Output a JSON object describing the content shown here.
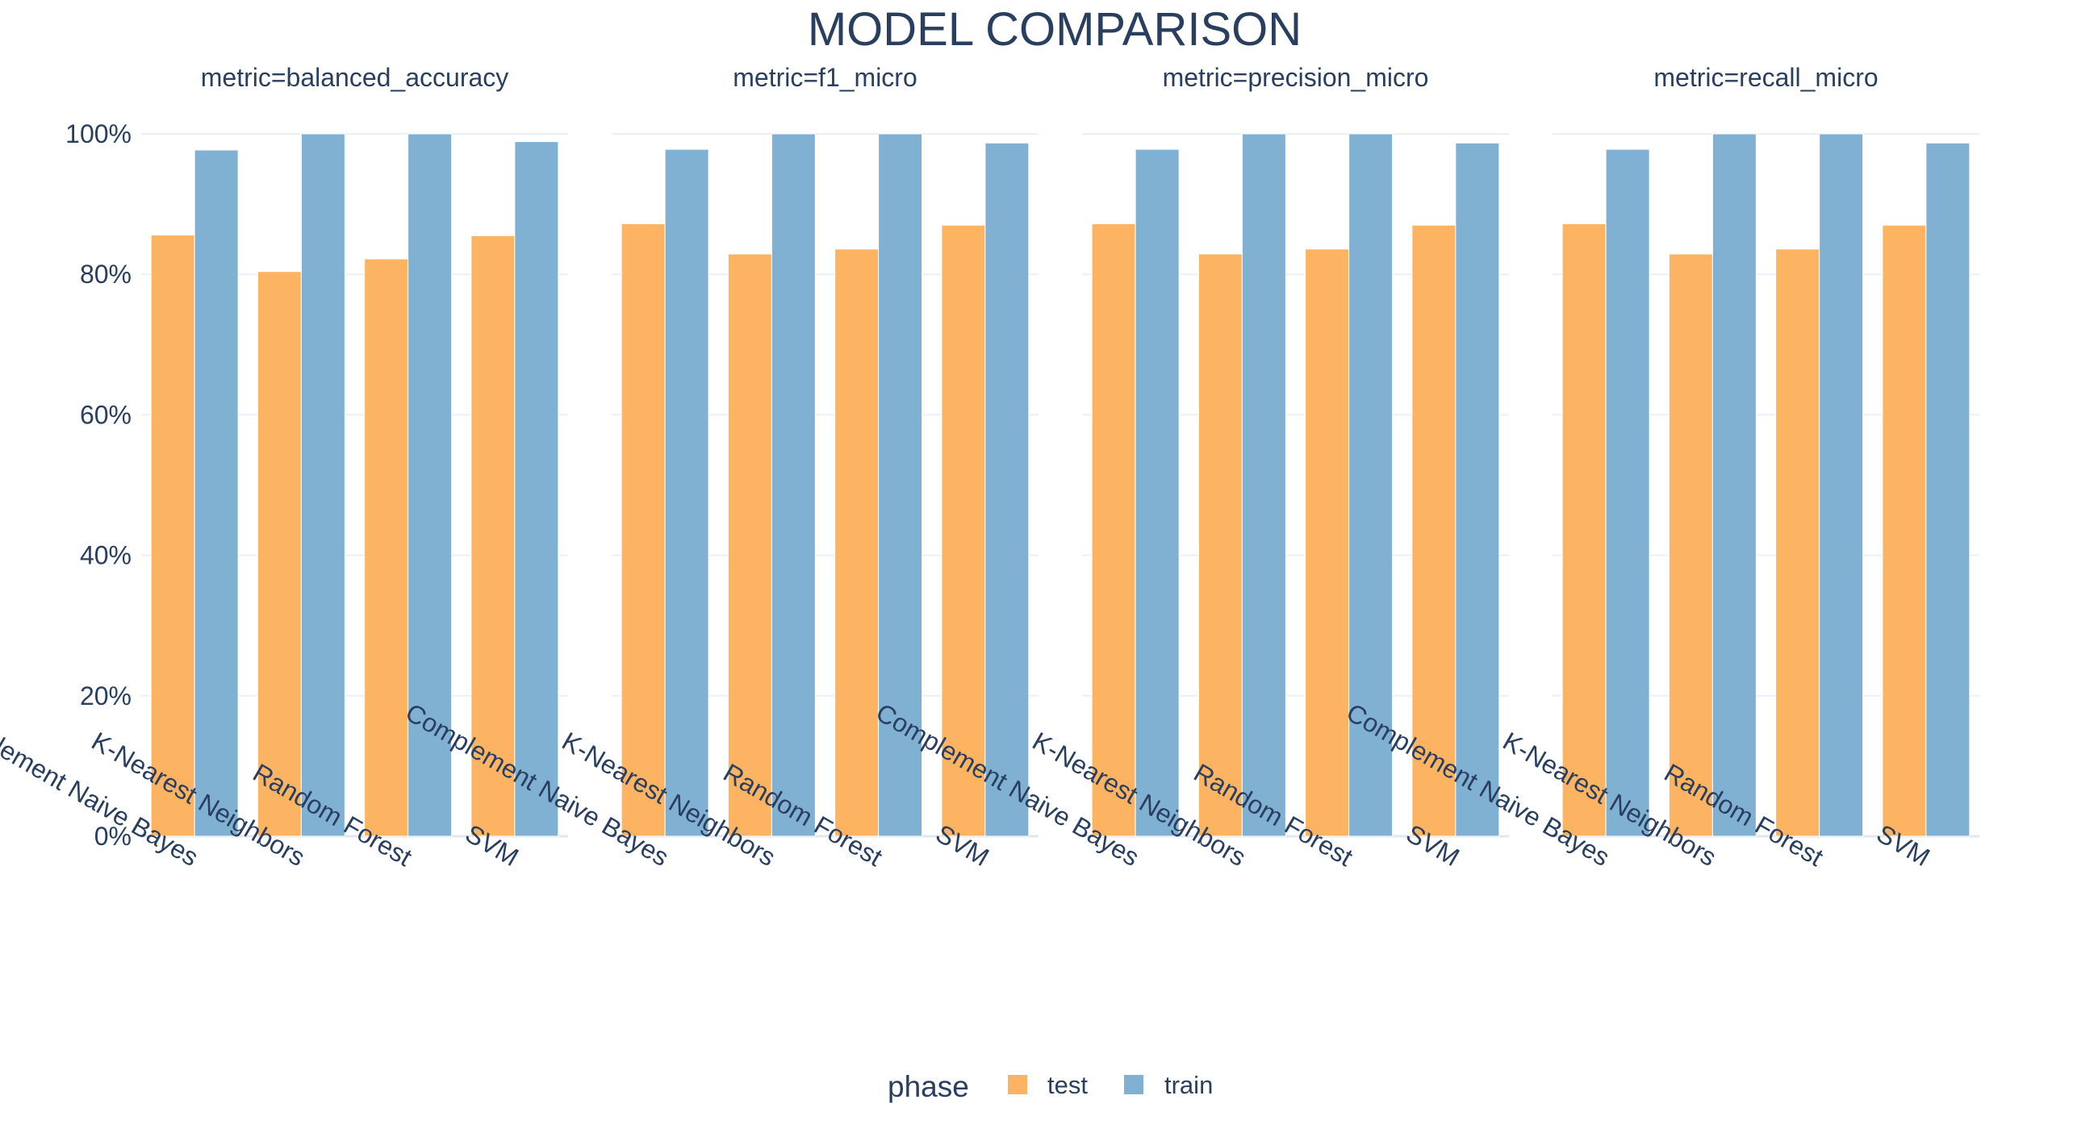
{
  "chart": {
    "title": "MODEL COMPARISON",
    "legend_title": "phase",
    "legend_placement": "bottom-center"
  },
  "colors": {
    "test": "#fdb462",
    "train": "#80b1d3",
    "text": "#2a3f5f",
    "grid": "#ebf0f8"
  },
  "chart_data": {
    "type": "bar",
    "barmode": "group",
    "categories": [
      "Complement Naive Bayes",
      "K-Nearest Neighbors",
      "Random Forest",
      "SVM"
    ],
    "y_ticks": [
      "0%",
      "20%",
      "40%",
      "60%",
      "80%",
      "100%"
    ],
    "ylim": [
      0,
      100
    ],
    "grid": true,
    "legend": [
      "test",
      "train"
    ],
    "facets": [
      {
        "title": "metric=balanced_accuracy",
        "series": [
          {
            "name": "test",
            "values": [
              85.6,
              80.4,
              82.2,
              85.5
            ]
          },
          {
            "name": "train",
            "values": [
              97.7,
              100,
              100,
              98.9
            ]
          }
        ]
      },
      {
        "title": "metric=f1_micro",
        "series": [
          {
            "name": "test",
            "values": [
              87.2,
              82.9,
              83.6,
              87.0
            ]
          },
          {
            "name": "train",
            "values": [
              97.8,
              100,
              100,
              98.7
            ]
          }
        ]
      },
      {
        "title": "metric=precision_micro",
        "series": [
          {
            "name": "test",
            "values": [
              87.2,
              82.9,
              83.6,
              87.0
            ]
          },
          {
            "name": "train",
            "values": [
              97.8,
              100,
              100,
              98.7
            ]
          }
        ]
      },
      {
        "title": "metric=recall_micro",
        "series": [
          {
            "name": "test",
            "values": [
              87.2,
              82.9,
              83.6,
              87.0
            ]
          },
          {
            "name": "train",
            "values": [
              97.8,
              100,
              100,
              98.7
            ]
          }
        ]
      }
    ]
  }
}
